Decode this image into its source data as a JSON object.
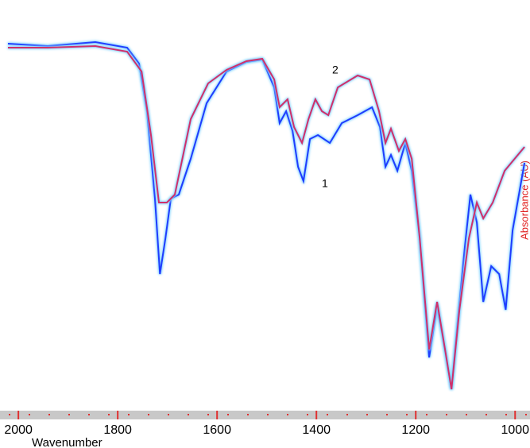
{
  "chart_data": {
    "type": "line",
    "x_label": "Wavenumber",
    "y_label": "Absorbance (AU)",
    "xlim": [
      2037,
      970
    ],
    "ylim": [
      0,
      100
    ],
    "xticks": [
      2000,
      1800,
      1600,
      1400,
      1200,
      1000
    ],
    "series": [
      {
        "name": "1",
        "color": "#1f3cff",
        "x": [
          2021,
          1941,
          1845,
          1781,
          1757,
          1741,
          1725,
          1715,
          1704,
          1693,
          1677,
          1653,
          1621,
          1581,
          1541,
          1509,
          1485,
          1474,
          1461,
          1448,
          1437,
          1426,
          1413,
          1397,
          1373,
          1349,
          1317,
          1288,
          1272,
          1261,
          1250,
          1237,
          1221,
          1208,
          1192,
          1173,
          1157,
          1144,
          1128,
          1115,
          1101,
          1090,
          1077,
          1064,
          1048,
          1032,
          1019,
          1005,
          981
        ],
        "values": [
          93,
          92.4,
          93.4,
          92,
          88,
          76,
          54,
          35,
          44,
          54,
          55,
          64,
          78,
          86,
          88.4,
          89,
          82,
          73,
          76,
          71,
          62,
          58.4,
          69,
          70,
          68,
          73,
          75,
          77,
          72,
          62,
          65,
          61,
          68,
          61,
          44,
          14,
          27,
          18,
          6,
          24,
          42,
          55,
          48,
          28,
          37,
          35,
          26,
          46,
          63
        ]
      },
      {
        "name": "2",
        "color": "#d0306a",
        "x": [
          2021,
          1941,
          1845,
          1781,
          1752,
          1733,
          1717,
          1701,
          1685,
          1653,
          1618,
          1581,
          1541,
          1509,
          1485,
          1474,
          1458,
          1445,
          1429,
          1416,
          1402,
          1389,
          1376,
          1357,
          1317,
          1293,
          1274,
          1261,
          1250,
          1234,
          1221,
          1208,
          1192,
          1173,
          1157,
          1141,
          1128,
          1112,
          1093,
          1077,
          1064,
          1045,
          1021,
          981
        ],
        "values": [
          92,
          92,
          92.4,
          91,
          86,
          70,
          53,
          53,
          55,
          74,
          83,
          86.4,
          88.6,
          89.2,
          84,
          77,
          79,
          72,
          68,
          74,
          79,
          76,
          75,
          82,
          85,
          84,
          76,
          68,
          71.6,
          66,
          69,
          64,
          44,
          16,
          28,
          16,
          6,
          26,
          44,
          53,
          49,
          53,
          61,
          67
        ]
      }
    ]
  }
}
